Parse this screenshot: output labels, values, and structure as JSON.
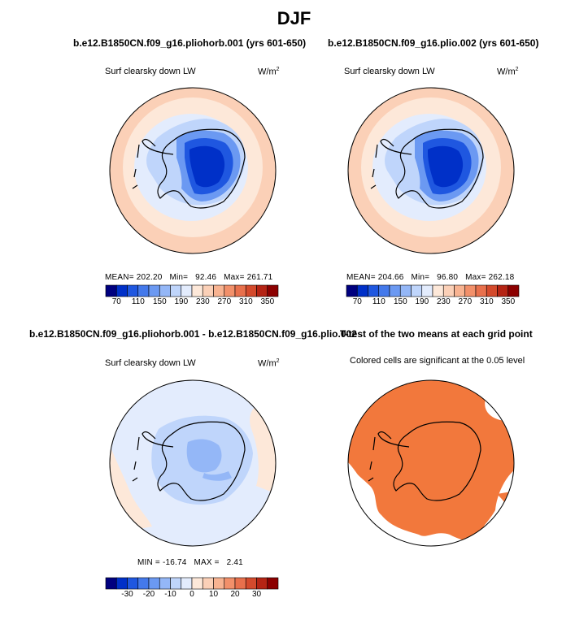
{
  "page": {
    "title": "DJF"
  },
  "colorbar_abs": {
    "colors": [
      "#00007f",
      "#0030c8",
      "#1f57e0",
      "#4479eb",
      "#6b99f2",
      "#94b7f7",
      "#bfd5fb",
      "#e3ecfd",
      "#fde8d9",
      "#fbd0b7",
      "#f8b391",
      "#f2906a",
      "#e8704c",
      "#d44a2c",
      "#b52414",
      "#8c0000"
    ],
    "labels": [
      "70",
      "110",
      "150",
      "190",
      "230",
      "270",
      "310",
      "350"
    ]
  },
  "colorbar_diff": {
    "colors": [
      "#00007f",
      "#0030c8",
      "#1f57e0",
      "#4479eb",
      "#6b99f2",
      "#94b7f7",
      "#bfd5fb",
      "#e3ecfd",
      "#fde8d9",
      "#fbd0b7",
      "#f8b391",
      "#f2906a",
      "#e8704c",
      "#d44a2c",
      "#b52414",
      "#8c0000"
    ],
    "labels": [
      "-30",
      "-20",
      "-10",
      "0",
      "10",
      "20",
      "30"
    ]
  },
  "chart_data": [
    {
      "type": "heatmap",
      "title": "b.e12.B1850CN.f09_g16.pliohorb.001 (yrs 601-650)",
      "variable": "Surf clearsky down LW",
      "units": "W/m",
      "units_sup": "2",
      "stats": {
        "mean_label": "MEAN=",
        "mean": "202.20",
        "min_label": "Min=",
        "min": "92.46",
        "max_label": "Max=",
        "max": "261.71"
      },
      "levels": [
        "70",
        "110",
        "150",
        "190",
        "230",
        "270",
        "310",
        "350"
      ]
    },
    {
      "type": "heatmap",
      "title": "b.e12.B1850CN.f09_g16.plio.002 (yrs 601-650)",
      "variable": "Surf clearsky down LW",
      "units": "W/m",
      "units_sup": "2",
      "stats": {
        "mean_label": "MEAN=",
        "mean": "204.66",
        "min_label": "Min=",
        "min": "96.80",
        "max_label": "Max=",
        "max": "262.18"
      },
      "levels": [
        "70",
        "110",
        "150",
        "190",
        "230",
        "270",
        "310",
        "350"
      ]
    },
    {
      "type": "heatmap",
      "title": "b.e12.B1850CN.f09_g16.pliohorb.001 - b.e12.B1850CN.f09_g16.plio.002",
      "variable": "Surf clearsky down LW",
      "units": "W/m",
      "units_sup": "2",
      "stats": {
        "min_label": "MIN =",
        "min": "-16.74",
        "max_label": "MAX =",
        "max": "2.41"
      },
      "levels": [
        "-30",
        "-20",
        "-10",
        "0",
        "10",
        "20",
        "30"
      ]
    },
    {
      "type": "heatmap",
      "title": "T-test of the two means at each grid point",
      "subtitle": "Colored cells are significant at the 0.05 level",
      "significance_level": 0.05
    }
  ]
}
